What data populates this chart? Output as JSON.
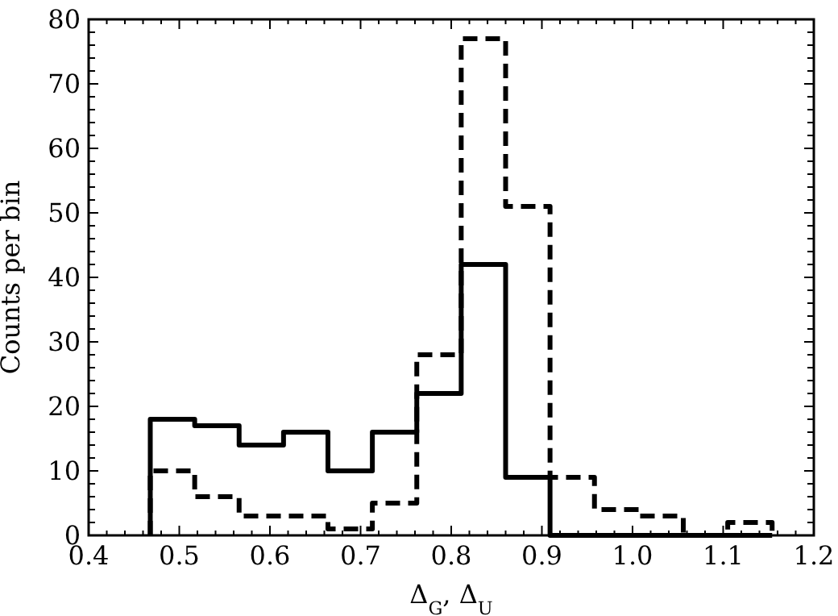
{
  "chart_data": {
    "type": "histogram",
    "xlabel": "Δ$_{G}$, Δ$_{U}$",
    "ylabel": "Counts per bin",
    "xlim": [
      0.4,
      1.2
    ],
    "ylim": [
      0,
      80
    ],
    "xticks": [
      0.4,
      {
        "value": 0.42,
        "label": null
      },
      {
        "value": 0.44,
        "label": null
      },
      {
        "value": 0.46,
        "label": null
      },
      {
        "value": 0.48,
        "label": null
      },
      0.5,
      {
        "value": 0.52,
        "label": null
      },
      {
        "value": 0.54,
        "label": null
      },
      {
        "value": 0.56,
        "label": null
      },
      {
        "value": 0.58,
        "label": null
      },
      0.6,
      {
        "value": 0.62,
        "label": null
      },
      {
        "value": 0.64,
        "label": null
      },
      {
        "value": 0.66,
        "label": null
      },
      {
        "value": 0.68,
        "label": null
      },
      0.7,
      {
        "value": 0.72,
        "label": null
      },
      {
        "value": 0.74,
        "label": null
      },
      {
        "value": 0.76,
        "label": null
      },
      {
        "value": 0.78,
        "label": null
      },
      0.8,
      {
        "value": 0.82,
        "label": null
      },
      {
        "value": 0.84,
        "label": null
      },
      {
        "value": 0.86,
        "label": null
      },
      {
        "value": 0.88,
        "label": null
      },
      0.9,
      {
        "value": 0.92,
        "label": null
      },
      {
        "value": 0.94,
        "label": null
      },
      {
        "value": 0.96,
        "label": null
      },
      {
        "value": 0.98,
        "label": null
      },
      {
        "value": 1.0,
        "label": "1.0"
      },
      {
        "value": 1.02,
        "label": null
      },
      {
        "value": 1.04,
        "label": null
      },
      {
        "value": 1.06,
        "label": null
      },
      {
        "value": 1.08,
        "label": null
      },
      1.1,
      {
        "value": 1.12,
        "label": null
      },
      {
        "value": 1.14,
        "label": null
      },
      {
        "value": 1.16,
        "label": null
      },
      {
        "value": 1.18,
        "label": null
      },
      1.2
    ],
    "yticks": [
      0,
      {
        "value": 2,
        "label": null
      },
      {
        "value": 4,
        "label": null
      },
      {
        "value": 6,
        "label": null
      },
      {
        "value": 8,
        "label": null
      },
      10,
      {
        "value": 12,
        "label": null
      },
      {
        "value": 14,
        "label": null
      },
      {
        "value": 16,
        "label": null
      },
      {
        "value": 18,
        "label": null
      },
      20,
      {
        "value": 22,
        "label": null
      },
      {
        "value": 24,
        "label": null
      },
      {
        "value": 26,
        "label": null
      },
      {
        "value": 28,
        "label": null
      },
      30,
      {
        "value": 32,
        "label": null
      },
      {
        "value": 34,
        "label": null
      },
      {
        "value": 36,
        "label": null
      },
      {
        "value": 38,
        "label": null
      },
      40,
      {
        "value": 42,
        "label": null
      },
      {
        "value": 44,
        "label": null
      },
      {
        "value": 46,
        "label": null
      },
      {
        "value": 48,
        "label": null
      },
      50,
      {
        "value": 52,
        "label": null
      },
      {
        "value": 54,
        "label": null
      },
      {
        "value": 56,
        "label": null
      },
      {
        "value": 58,
        "label": null
      },
      60,
      {
        "value": 62,
        "label": null
      },
      {
        "value": 64,
        "label": null
      },
      {
        "value": 66,
        "label": null
      },
      {
        "value": 68,
        "label": null
      },
      70,
      {
        "value": 72,
        "label": null
      },
      {
        "value": 74,
        "label": null
      },
      {
        "value": 76,
        "label": null
      },
      {
        "value": 78,
        "label": null
      },
      80
    ],
    "grid": false,
    "bins": [
      0.468,
      0.517,
      0.566,
      0.615,
      0.664,
      0.713,
      0.762,
      0.811,
      0.86,
      0.909,
      0.958,
      1.007,
      1.056,
      1.105,
      1.154
    ],
    "series": [
      {
        "color": "#000000",
        "line_style": "solid",
        "values": [
          18,
          17,
          14,
          16,
          10,
          16,
          22,
          42,
          9,
          0,
          0,
          0,
          0,
          0
        ]
      },
      {
        "color": "#000000",
        "line_style": "dashed",
        "values": [
          10,
          6,
          3,
          3,
          1,
          5,
          28,
          77,
          51,
          9,
          4,
          3,
          0,
          2
        ]
      }
    ]
  }
}
